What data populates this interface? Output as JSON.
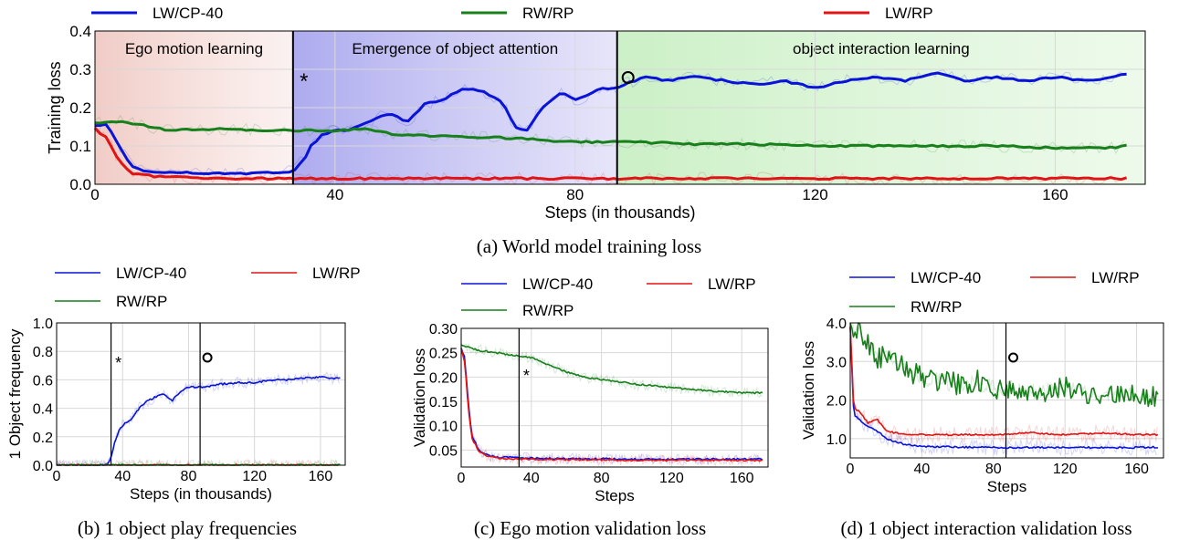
{
  "captions": {
    "a": "(a) World model training loss",
    "b": "(b) 1 object play frequencies",
    "c": "(c) Ego motion validation loss",
    "d": "(d) 1 object interaction validation loss"
  },
  "colors": {
    "LW/CP-40": "#0a14d8",
    "RW/RP": "#17801a",
    "LW/RP": "#e01414",
    "phase_ego": "#f4d5d0",
    "phase_attention": "#b9b8f0",
    "phase_interaction": "#d4f2cf"
  },
  "chart_data": [
    {
      "id": "a",
      "type": "line",
      "title": "",
      "xlabel": "Steps (in thousands)",
      "ylabel": "Training loss",
      "xlim": [
        0,
        175
      ],
      "ylim": [
        0.0,
        0.4
      ],
      "xticks": [
        0,
        40,
        80,
        120,
        160
      ],
      "yticks": [
        0.0,
        0.1,
        0.2,
        0.3,
        0.4
      ],
      "ytick_labels": [
        "0.0",
        "0.1",
        "0.2",
        "0.3",
        "0.4"
      ],
      "grid": true,
      "legend_position": "top",
      "legend": [
        "LW/CP-40",
        "RW/RP",
        "LW/RP"
      ],
      "phases": [
        {
          "label": "Ego motion learning",
          "x_start": 0,
          "x_end": 33
        },
        {
          "label": "Emergence of object attention",
          "x_start": 33,
          "x_end": 87
        },
        {
          "label": "object interaction learning",
          "x_start": 87,
          "x_end": 175
        }
      ],
      "markers": [
        {
          "symbol": "*",
          "x": 33
        },
        {
          "symbol": "o",
          "x": 87
        }
      ],
      "series": [
        {
          "name": "LW/CP-40",
          "x": [
            0,
            2,
            4,
            6,
            8,
            12,
            16,
            20,
            25,
            28,
            30,
            32,
            33,
            34,
            35,
            36,
            38,
            40,
            42,
            45,
            48,
            50,
            52,
            55,
            58,
            60,
            62,
            65,
            68,
            70,
            72,
            74,
            76,
            78,
            80,
            82,
            84,
            86,
            87,
            88,
            90,
            92,
            95,
            100,
            105,
            110,
            115,
            120,
            125,
            130,
            135,
            140,
            145,
            150,
            155,
            160,
            165,
            170,
            172
          ],
          "y": [
            0.155,
            0.155,
            0.1,
            0.05,
            0.035,
            0.03,
            0.03,
            0.028,
            0.027,
            0.03,
            0.03,
            0.032,
            0.033,
            0.05,
            0.07,
            0.1,
            0.13,
            0.14,
            0.14,
            0.16,
            0.18,
            0.18,
            0.16,
            0.21,
            0.22,
            0.24,
            0.25,
            0.24,
            0.21,
            0.15,
            0.14,
            0.19,
            0.22,
            0.24,
            0.22,
            0.23,
            0.25,
            0.25,
            0.25,
            0.26,
            0.27,
            0.28,
            0.27,
            0.28,
            0.27,
            0.26,
            0.27,
            0.25,
            0.27,
            0.28,
            0.27,
            0.29,
            0.27,
            0.28,
            0.27,
            0.28,
            0.27,
            0.28,
            0.29
          ]
        },
        {
          "name": "RW/RP",
          "x": [
            0,
            4,
            8,
            12,
            20,
            30,
            40,
            45,
            50,
            60,
            70,
            80,
            90,
            100,
            110,
            120,
            130,
            140,
            150,
            160,
            170,
            172
          ],
          "y": [
            0.16,
            0.165,
            0.155,
            0.14,
            0.145,
            0.14,
            0.14,
            0.145,
            0.13,
            0.125,
            0.12,
            0.11,
            0.11,
            0.105,
            0.105,
            0.1,
            0.1,
            0.1,
            0.1,
            0.095,
            0.095,
            0.1
          ]
        },
        {
          "name": "LW/RP",
          "x": [
            0,
            2,
            4,
            6,
            10,
            20,
            30,
            40,
            60,
            80,
            100,
            120,
            140,
            160,
            172
          ],
          "y": [
            0.145,
            0.12,
            0.06,
            0.03,
            0.02,
            0.015,
            0.015,
            0.015,
            0.015,
            0.015,
            0.015,
            0.015,
            0.015,
            0.015,
            0.015
          ]
        }
      ]
    },
    {
      "id": "b",
      "type": "line",
      "title": "",
      "xlabel": "Steps (in thousands)",
      "ylabel": "1 Object frequency",
      "xlim": [
        0,
        175
      ],
      "ylim": [
        0.0,
        1.0
      ],
      "xticks": [
        0,
        40,
        80,
        120,
        160
      ],
      "yticks": [
        0.0,
        0.2,
        0.4,
        0.6,
        0.8,
        1.0
      ],
      "ytick_labels": [
        "0.0",
        "0.2",
        "0.4",
        "0.6",
        "0.8",
        "1.0"
      ],
      "grid": true,
      "legend_position": "top",
      "legend": [
        "LW/CP-40",
        "LW/RP",
        "RW/RP"
      ],
      "markers": [
        {
          "symbol": "*",
          "x": 33
        },
        {
          "symbol": "o",
          "x": 87
        }
      ],
      "series": [
        {
          "name": "LW/CP-40",
          "x": [
            0,
            30,
            33,
            35,
            38,
            42,
            45,
            50,
            55,
            60,
            65,
            70,
            75,
            80,
            85,
            90,
            95,
            100,
            110,
            120,
            130,
            140,
            150,
            160,
            170,
            172
          ],
          "y": [
            0.0,
            0.0,
            0.05,
            0.15,
            0.25,
            0.3,
            0.32,
            0.4,
            0.45,
            0.48,
            0.5,
            0.45,
            0.52,
            0.55,
            0.55,
            0.55,
            0.56,
            0.57,
            0.58,
            0.58,
            0.6,
            0.6,
            0.61,
            0.62,
            0.61,
            0.62
          ]
        },
        {
          "name": "LW/RP",
          "x": [
            0,
            172
          ],
          "y": [
            0.0,
            0.0
          ]
        },
        {
          "name": "RW/RP",
          "x": [
            0,
            172
          ],
          "y": [
            0.0,
            0.0
          ]
        }
      ]
    },
    {
      "id": "c",
      "type": "line",
      "title": "",
      "xlabel": "Steps",
      "ylabel": "Validation loss",
      "xlim": [
        0,
        175
      ],
      "ylim": [
        0.015,
        0.3
      ],
      "xticks": [
        0,
        40,
        80,
        120,
        160
      ],
      "yticks": [
        0.05,
        0.1,
        0.15,
        0.2,
        0.25,
        0.3
      ],
      "ytick_labels": [
        "0.05",
        "0.10",
        "0.15",
        "0.20",
        "0.25",
        "0.30"
      ],
      "grid": true,
      "legend_position": "top",
      "legend": [
        "LW/CP-40",
        "LW/RP",
        "RW/RP"
      ],
      "markers": [
        {
          "symbol": "*",
          "x": 33
        }
      ],
      "series": [
        {
          "name": "LW/CP-40",
          "x": [
            0,
            2,
            4,
            6,
            10,
            15,
            20,
            30,
            40,
            60,
            80,
            100,
            120,
            140,
            160,
            172
          ],
          "y": [
            0.26,
            0.24,
            0.15,
            0.08,
            0.05,
            0.04,
            0.035,
            0.035,
            0.033,
            0.032,
            0.032,
            0.031,
            0.031,
            0.031,
            0.031,
            0.031
          ]
        },
        {
          "name": "LW/RP",
          "x": [
            0,
            2,
            4,
            6,
            10,
            15,
            20,
            30,
            40,
            60,
            80,
            100,
            120,
            140,
            160,
            172
          ],
          "y": [
            0.26,
            0.23,
            0.14,
            0.075,
            0.048,
            0.038,
            0.033,
            0.032,
            0.031,
            0.03,
            0.03,
            0.029,
            0.029,
            0.029,
            0.029,
            0.029
          ]
        },
        {
          "name": "RW/RP",
          "x": [
            0,
            10,
            20,
            30,
            40,
            50,
            60,
            70,
            80,
            100,
            120,
            140,
            160,
            172
          ],
          "y": [
            0.265,
            0.255,
            0.25,
            0.245,
            0.24,
            0.225,
            0.21,
            0.2,
            0.195,
            0.185,
            0.178,
            0.172,
            0.168,
            0.167
          ]
        }
      ]
    },
    {
      "id": "d",
      "type": "line",
      "title": "",
      "xlabel": "Steps",
      "ylabel": "Validation loss",
      "xlim": [
        0,
        175
      ],
      "ylim": [
        0.5,
        4.0
      ],
      "xticks": [
        0,
        40,
        80,
        120,
        160
      ],
      "yticks": [
        1.0,
        2.0,
        3.0,
        4.0
      ],
      "ytick_labels": [
        "1.0",
        "2.0",
        "3.0",
        "4.0"
      ],
      "grid": true,
      "legend_position": "top",
      "legend": [
        "LW/CP-40",
        "LW/RP",
        "RW/RP"
      ],
      "markers": [
        {
          "symbol": "o",
          "x": 87
        }
      ],
      "series": [
        {
          "name": "LW/CP-40",
          "x": [
            0,
            2,
            5,
            10,
            15,
            20,
            30,
            40,
            60,
            80,
            100,
            120,
            140,
            160,
            172
          ],
          "y": [
            3.9,
            1.6,
            1.5,
            1.3,
            1.2,
            1.0,
            0.85,
            0.8,
            0.78,
            0.77,
            0.77,
            0.77,
            0.77,
            0.77,
            0.78
          ]
        },
        {
          "name": "LW/RP",
          "x": [
            0,
            2,
            5,
            10,
            15,
            20,
            30,
            40,
            60,
            80,
            100,
            120,
            140,
            160,
            172
          ],
          "y": [
            3.9,
            1.8,
            1.7,
            1.4,
            1.5,
            1.2,
            1.1,
            1.1,
            1.1,
            1.1,
            1.15,
            1.1,
            1.15,
            1.1,
            1.1
          ]
        },
        {
          "name": "RW/RP",
          "x": [
            0,
            5,
            10,
            15,
            20,
            30,
            40,
            50,
            60,
            70,
            80,
            90,
            100,
            120,
            140,
            160,
            172
          ],
          "y": [
            4.0,
            3.8,
            3.5,
            3.0,
            3.2,
            2.8,
            2.6,
            2.5,
            2.4,
            2.5,
            2.3,
            2.3,
            2.2,
            2.3,
            2.1,
            2.2,
            2.0
          ]
        }
      ]
    }
  ]
}
